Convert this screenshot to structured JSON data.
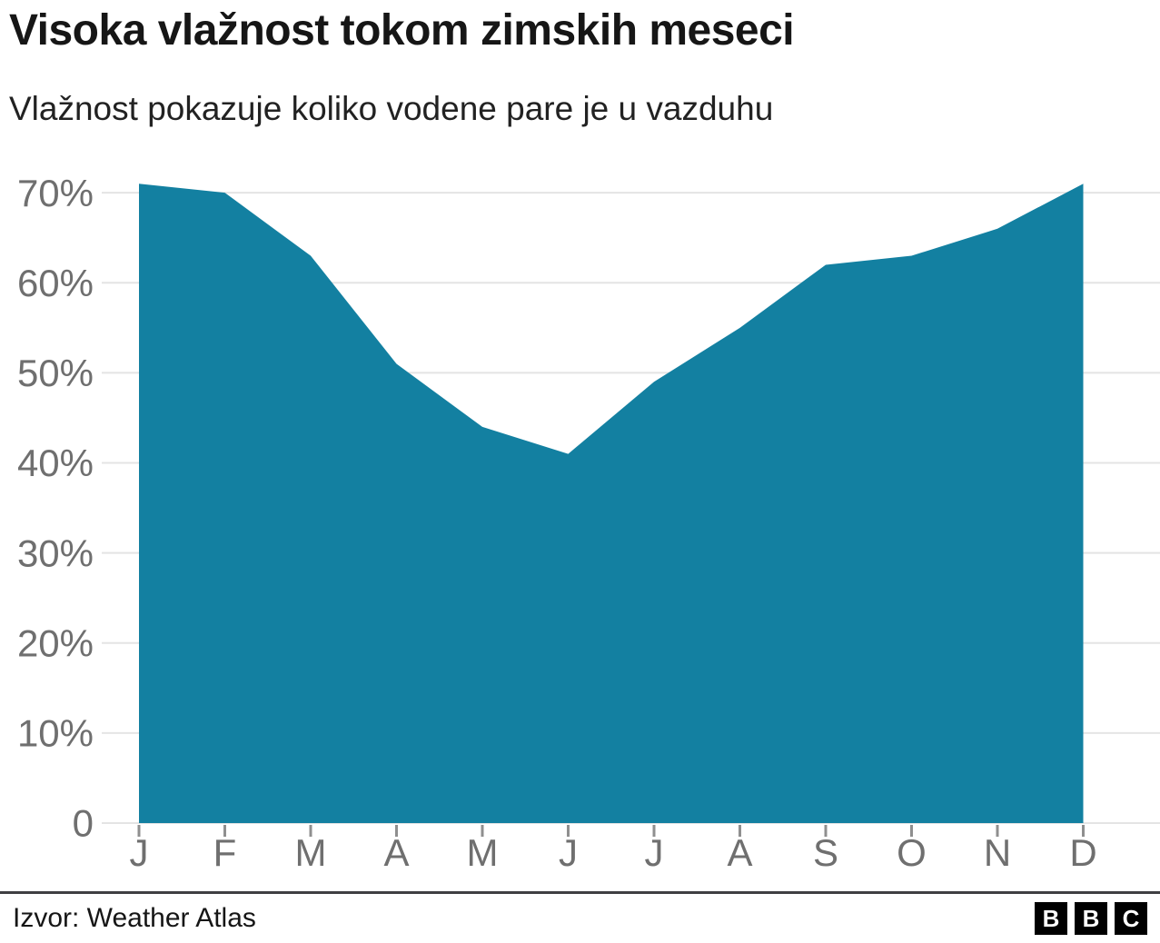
{
  "header": {
    "title": "Visoka vlažnost tokom zimskih meseci",
    "subtitle": "Vlažnost pokazuje koliko vodene pare je u vazduhu"
  },
  "chart_data": {
    "type": "area",
    "title": "Visoka vlažnost tokom zimskih meseci",
    "subtitle": "Vlažnost pokazuje koliko vodene pare je u vazduhu",
    "categories": [
      "J",
      "F",
      "M",
      "A",
      "M",
      "J",
      "J",
      "A",
      "S",
      "O",
      "N",
      "D"
    ],
    "values": [
      71,
      70,
      63,
      51,
      44,
      41,
      49,
      55,
      62,
      63,
      66,
      71
    ],
    "unit": "%",
    "xlabel": "",
    "ylabel": "",
    "ylim": [
      0,
      70
    ],
    "yticks": [
      0,
      10,
      20,
      30,
      40,
      50,
      60,
      70
    ],
    "ytick_labels": [
      "0",
      "10%",
      "20%",
      "30%",
      "40%",
      "50%",
      "60%",
      "70%"
    ],
    "grid": true,
    "legend": "none",
    "area_color": "#1380A1",
    "gridline_color": "#e4e4e4",
    "axis_text_color": "#6f6f6f",
    "tick_color": "#8f8f8f"
  },
  "footer": {
    "source": "Izvor: Weather Atlas",
    "logo_letters": [
      "B",
      "B",
      "C"
    ]
  }
}
